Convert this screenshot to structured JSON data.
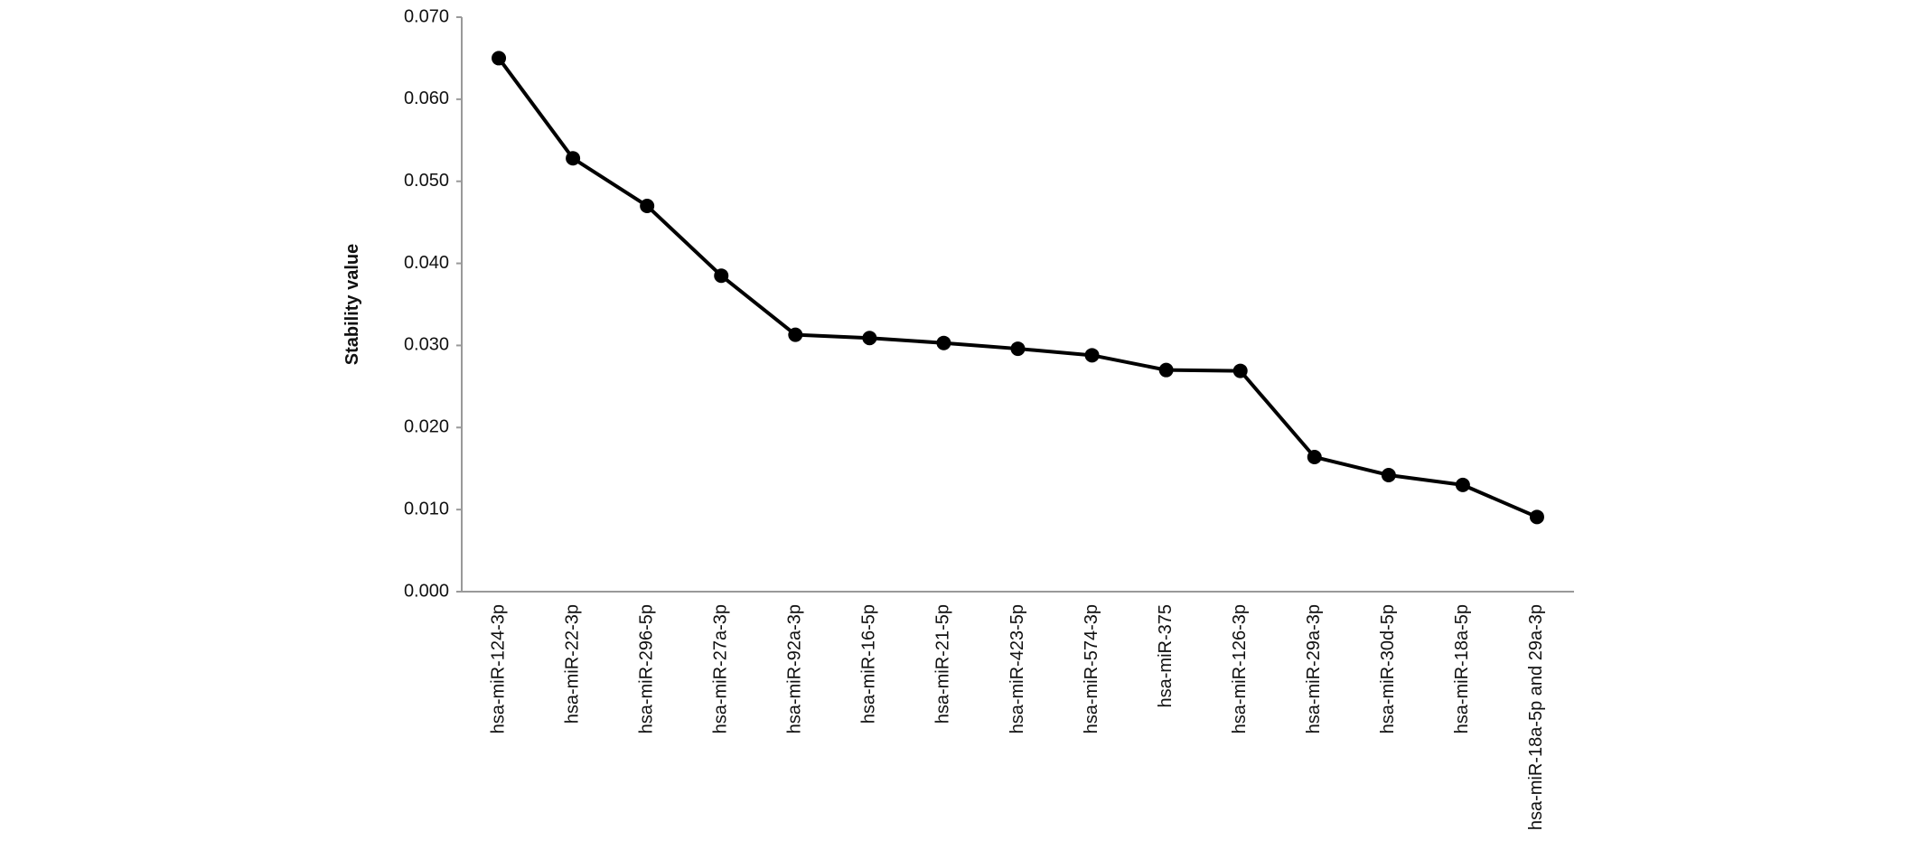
{
  "chart_data": {
    "type": "line",
    "y_label": "Stability value",
    "categories": [
      "hsa-miR-124-3p",
      "hsa-miR-22-3p",
      "hsa-miR-296-5p",
      "hsa-miR-27a-3p",
      "hsa-miR-92a-3p",
      "hsa-miR-16-5p",
      "hsa-miR-21-5p",
      "hsa-miR-423-5p",
      "hsa-miR-574-3p",
      "hsa-miR-375",
      "hsa-miR-126-3p",
      "hsa-miR-29a-3p",
      "hsa-miR-30d-5p",
      "hsa-miR-18a-5p",
      "hsa-miR-18a-5p and 29a-3p"
    ],
    "values": [
      0.065,
      0.0528,
      0.047,
      0.0385,
      0.0313,
      0.0309,
      0.0303,
      0.0296,
      0.0288,
      0.027,
      0.0269,
      0.0164,
      0.0142,
      0.013,
      0.0091
    ],
    "color": "#000000",
    "ylim": [
      0,
      0.07
    ],
    "yticks": [
      {
        "value": 0,
        "label": "0.000"
      },
      {
        "value": 0.01,
        "label": "0.010"
      },
      {
        "value": 0.02,
        "label": "0.020"
      },
      {
        "value": 0.03,
        "label": "0.030"
      },
      {
        "value": 0.04,
        "label": "0.040"
      },
      {
        "value": 0.05,
        "label": "0.050"
      },
      {
        "value": 0.06,
        "label": "0.060"
      },
      {
        "value": 0.07,
        "label": "0.070"
      }
    ],
    "grid": false
  }
}
